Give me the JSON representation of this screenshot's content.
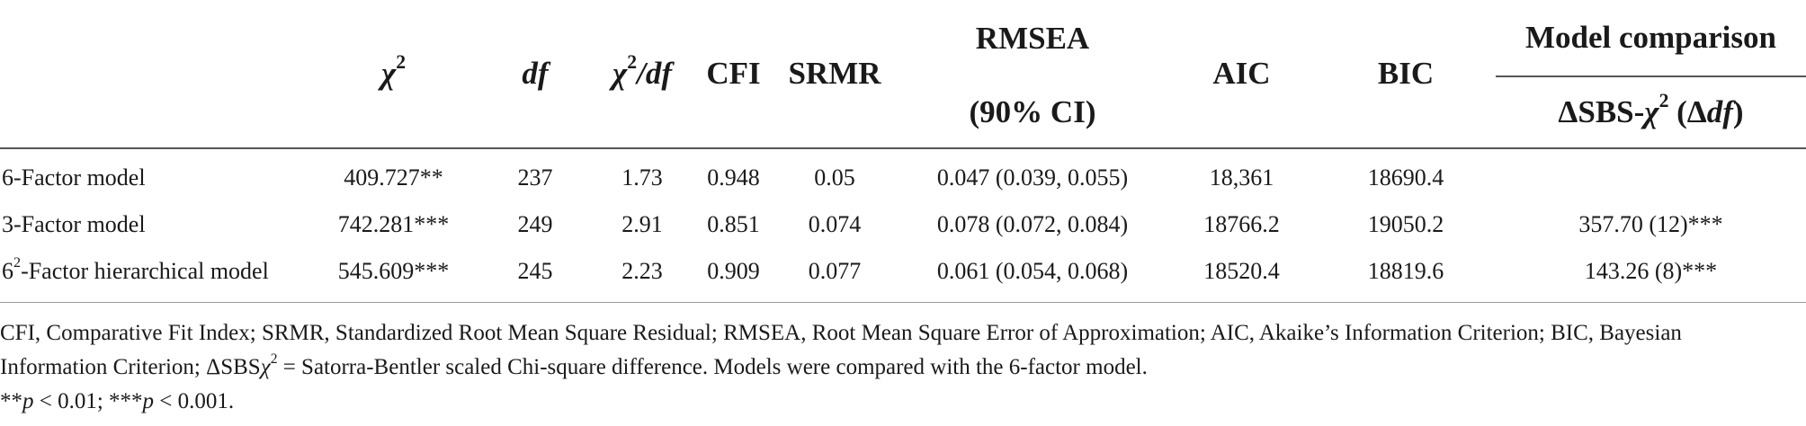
{
  "table": {
    "headers": {
      "chi2": "χ",
      "chi2_sup": "2",
      "df": "df",
      "chi2df_chi": "χ",
      "chi2df_sup": "2",
      "chi2df_slash": "/",
      "chi2df_df": "df",
      "cfi": "CFI",
      "srmr": "SRMR",
      "rmsea_line1": "RMSEA",
      "rmsea_line2": "(90% CI)",
      "aic": "AIC",
      "bic": "BIC",
      "model_comparison": "Model comparison",
      "mc_delta_sbs": "ΔSBS-",
      "mc_chi": "χ",
      "mc_sup": "2",
      "mc_open": " (Δ",
      "mc_df": "df",
      "mc_close": ")"
    },
    "rows": [
      {
        "label_pre": "6-Factor model",
        "label_sup": "",
        "label_post": "",
        "chi2": "409.727**",
        "df": "237",
        "chi2df": "1.73",
        "cfi": "0.948",
        "srmr": "0.05",
        "rmsea": "0.047 (0.039, 0.055)",
        "aic": "18,361",
        "bic": "18690.4",
        "comparison": ""
      },
      {
        "label_pre": "3-Factor model",
        "label_sup": "",
        "label_post": "",
        "chi2": "742.281***",
        "df": "249",
        "chi2df": "2.91",
        "cfi": "0.851",
        "srmr": "0.074",
        "rmsea": "0.078 (0.072, 0.084)",
        "aic": "18766.2",
        "bic": "19050.2",
        "comparison": "357.70 (12)***"
      },
      {
        "label_pre": "6",
        "label_sup": "2",
        "label_post": "-Factor hierarchical model",
        "chi2": "545.609***",
        "df": "245",
        "chi2df": "2.23",
        "cfi": "0.909",
        "srmr": "0.077",
        "rmsea": "0.061 (0.054, 0.068)",
        "aic": "18520.4",
        "bic": "18819.6",
        "comparison": "143.26 (8)***"
      }
    ]
  },
  "footnote": {
    "line1": "CFI, Comparative Fit Index; SRMR, Standardized Root Mean Square Residual; RMSEA, Root Mean Square Error of Approximation; AIC, Akaike’s Information Criterion; BIC, Bayesian",
    "line2_a": "Information Criterion; ΔSBS",
    "line2_chi": "χ",
    "line2_sup": "2",
    "line2_b": " = Satorra-Bentler scaled Chi-square difference. Models were compared with the 6-factor model.",
    "line3_a": "**",
    "line3_p1": "p",
    "line3_b": " < 0.01; ***",
    "line3_p2": "p",
    "line3_c": " < 0.001."
  }
}
